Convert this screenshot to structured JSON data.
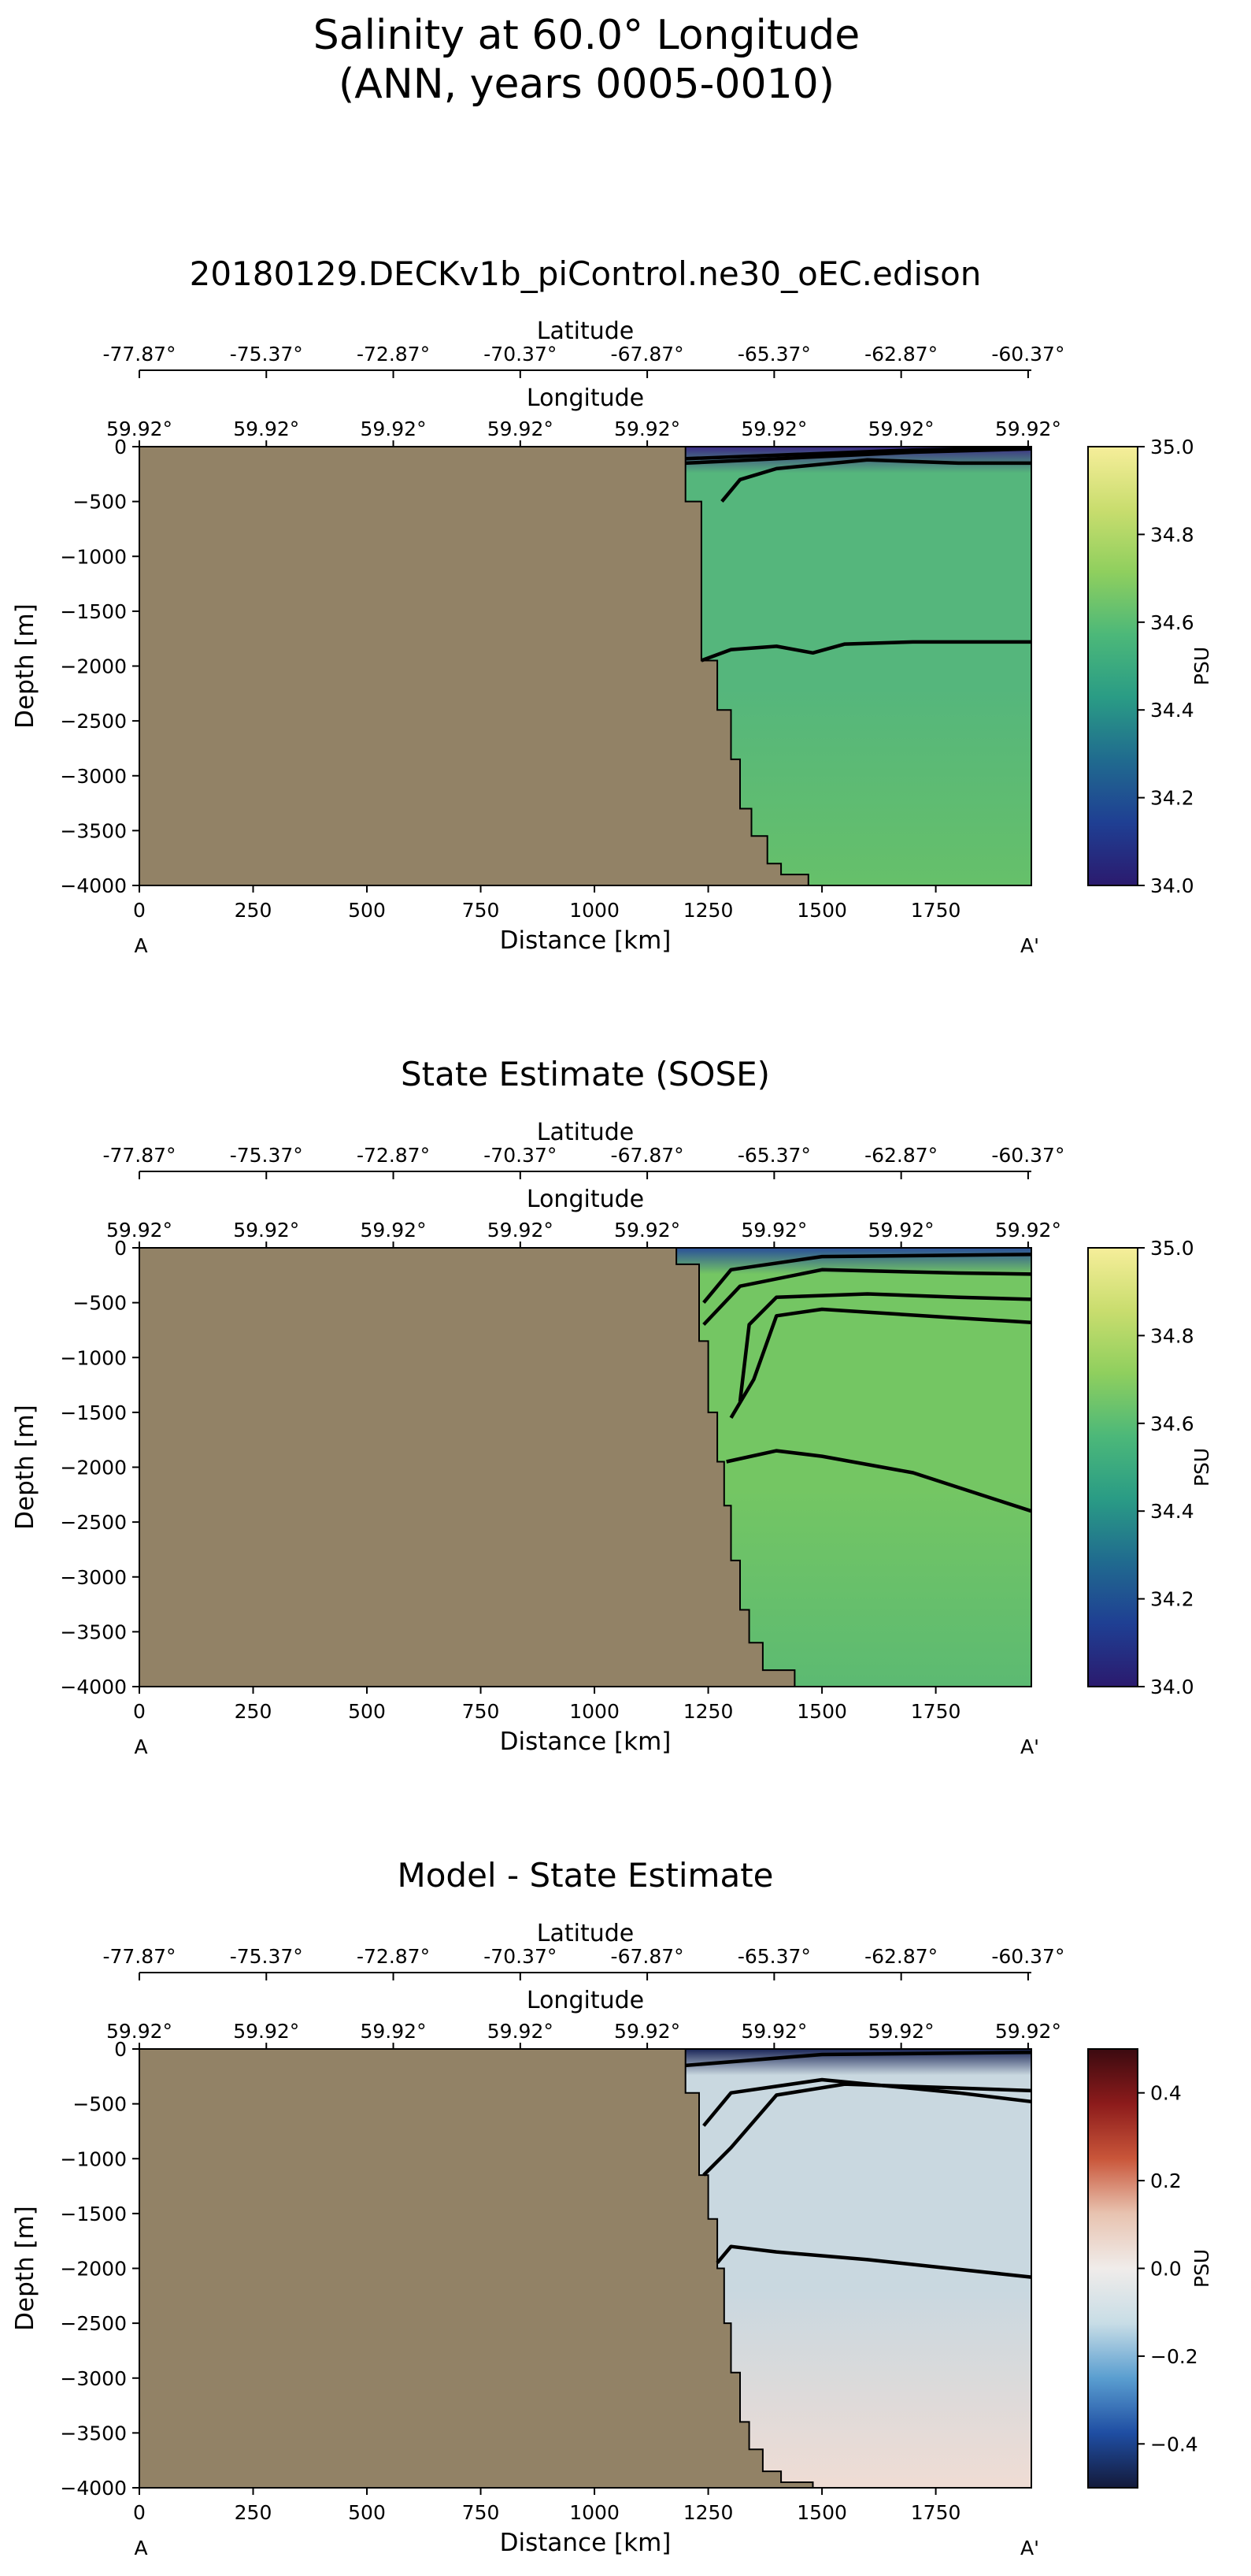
{
  "figure": {
    "title_line1": "Salinity at 60.0° Longitude",
    "title_line2": "(ANN, years 0005-0010)"
  },
  "chart_data": [
    {
      "type": "heatmap",
      "title": "20180129.DECKv1b_piControl.ne30_oEC.edison",
      "xlabel": "Distance [km]",
      "ylabel": "Depth [m]",
      "xlim": [
        0,
        1960
      ],
      "ylim": [
        -4000,
        0
      ],
      "xticks": [
        0,
        250,
        500,
        750,
        1000,
        1250,
        1500,
        1750
      ],
      "yticks": [
        0,
        -500,
        -1000,
        -1500,
        -2000,
        -2500,
        -3000,
        -3500,
        -4000
      ],
      "secondary_axes": {
        "latitude_label": "Latitude",
        "latitude_ticks": [
          "-77.87°",
          "-75.37°",
          "-72.87°",
          "-70.37°",
          "-67.87°",
          "-65.37°",
          "-62.87°",
          "-60.37°"
        ],
        "longitude_label": "Longitude",
        "longitude_ticks": [
          "59.92°",
          "59.92°",
          "59.92°",
          "59.92°",
          "59.92°",
          "59.92°",
          "59.92°",
          "59.92°"
        ]
      },
      "endpoint_labels": [
        "A",
        "A'"
      ],
      "colorbar": {
        "label": "PSU",
        "vmin": 34.0,
        "vmax": 35.0,
        "ticks": [
          "35.0",
          "34.8",
          "34.6",
          "34.4",
          "34.2",
          "34.0"
        ],
        "colors": [
          "#2b1a6e",
          "#1f3f93",
          "#206b8f",
          "#2a9c85",
          "#4cb879",
          "#8fcf5e",
          "#c9dd6e",
          "#f6ee9a"
        ]
      },
      "field_color_deep": "#66c06a",
      "field_color_mid": "#55b67c",
      "surface_color": "#3b2a85",
      "land_color": "#928266",
      "coastline": [
        [
          1200,
          0
        ],
        [
          1200,
          -500
        ],
        [
          1235,
          -500
        ],
        [
          1235,
          -1950
        ],
        [
          1270,
          -1950
        ],
        [
          1270,
          -2400
        ],
        [
          1300,
          -2400
        ],
        [
          1300,
          -2850
        ],
        [
          1320,
          -2850
        ],
        [
          1320,
          -3300
        ],
        [
          1345,
          -3300
        ],
        [
          1345,
          -3550
        ],
        [
          1380,
          -3550
        ],
        [
          1380,
          -3800
        ],
        [
          1410,
          -3800
        ],
        [
          1410,
          -3900
        ],
        [
          1470,
          -3900
        ],
        [
          1470,
          -4000
        ]
      ],
      "contours": [
        [
          [
            1200,
            -150
          ],
          [
            1700,
            -50
          ],
          [
            1960,
            -20
          ]
        ],
        [
          [
            1200,
            -110
          ],
          [
            1700,
            -30
          ],
          [
            1960,
            -10
          ]
        ],
        [
          [
            1280,
            -500
          ],
          [
            1320,
            -300
          ],
          [
            1400,
            -200
          ],
          [
            1600,
            -120
          ],
          [
            1800,
            -150
          ],
          [
            1960,
            -150
          ]
        ],
        [
          [
            1235,
            -1950
          ],
          [
            1300,
            -1850
          ],
          [
            1400,
            -1820
          ],
          [
            1480,
            -1880
          ],
          [
            1550,
            -1800
          ],
          [
            1700,
            -1780
          ],
          [
            1960,
            -1780
          ]
        ]
      ]
    },
    {
      "type": "heatmap",
      "title": "State Estimate (SOSE)",
      "xlabel": "Distance [km]",
      "ylabel": "Depth [m]",
      "xlim": [
        0,
        1960
      ],
      "ylim": [
        -4000,
        0
      ],
      "xticks": [
        0,
        250,
        500,
        750,
        1000,
        1250,
        1500,
        1750
      ],
      "yticks": [
        0,
        -500,
        -1000,
        -1500,
        -2000,
        -2500,
        -3000,
        -3500,
        -4000
      ],
      "secondary_axes": {
        "latitude_label": "Latitude",
        "latitude_ticks": [
          "-77.87°",
          "-75.37°",
          "-72.87°",
          "-70.37°",
          "-67.87°",
          "-65.37°",
          "-62.87°",
          "-60.37°"
        ],
        "longitude_label": "Longitude",
        "longitude_ticks": [
          "59.92°",
          "59.92°",
          "59.92°",
          "59.92°",
          "59.92°",
          "59.92°",
          "59.92°",
          "59.92°"
        ]
      },
      "endpoint_labels": [
        "A",
        "A'"
      ],
      "colorbar": {
        "label": "PSU",
        "vmin": 34.0,
        "vmax": 35.0,
        "ticks": [
          "35.0",
          "34.8",
          "34.6",
          "34.4",
          "34.2",
          "34.0"
        ],
        "colors": [
          "#2b1a6e",
          "#1f3f93",
          "#206b8f",
          "#2a9c85",
          "#4cb879",
          "#8fcf5e",
          "#c9dd6e",
          "#f6ee9a"
        ]
      },
      "field_color_deep": "#5cba72",
      "field_color_mid": "#74c663",
      "surface_color": "#2a4f9a",
      "land_color": "#928266",
      "coastline": [
        [
          1180,
          0
        ],
        [
          1180,
          -150
        ],
        [
          1230,
          -150
        ],
        [
          1230,
          -850
        ],
        [
          1250,
          -850
        ],
        [
          1250,
          -1500
        ],
        [
          1270,
          -1500
        ],
        [
          1270,
          -1950
        ],
        [
          1285,
          -1950
        ],
        [
          1285,
          -2350
        ],
        [
          1300,
          -2350
        ],
        [
          1300,
          -2850
        ],
        [
          1320,
          -2850
        ],
        [
          1320,
          -3300
        ],
        [
          1340,
          -3300
        ],
        [
          1340,
          -3600
        ],
        [
          1370,
          -3600
        ],
        [
          1370,
          -3850
        ],
        [
          1440,
          -3850
        ],
        [
          1440,
          -4000
        ]
      ],
      "contours": [
        [
          [
            1240,
            -500
          ],
          [
            1300,
            -200
          ],
          [
            1500,
            -80
          ],
          [
            1960,
            -60
          ]
        ],
        [
          [
            1240,
            -700
          ],
          [
            1320,
            -350
          ],
          [
            1500,
            -200
          ],
          [
            1800,
            -230
          ],
          [
            1960,
            -240
          ]
        ],
        [
          [
            1320,
            -1400
          ],
          [
            1340,
            -700
          ],
          [
            1400,
            -450
          ],
          [
            1600,
            -420
          ],
          [
            1800,
            -450
          ],
          [
            1960,
            -470
          ]
        ],
        [
          [
            1300,
            -1550
          ],
          [
            1350,
            -1200
          ],
          [
            1400,
            -620
          ],
          [
            1500,
            -560
          ],
          [
            1800,
            -640
          ],
          [
            1960,
            -680
          ]
        ],
        [
          [
            1290,
            -1950
          ],
          [
            1400,
            -1850
          ],
          [
            1500,
            -1900
          ],
          [
            1700,
            -2050
          ],
          [
            1960,
            -2400
          ]
        ]
      ]
    },
    {
      "type": "heatmap",
      "title": "Model - State Estimate",
      "xlabel": "Distance [km]",
      "ylabel": "Depth [m]",
      "xlim": [
        0,
        1960
      ],
      "ylim": [
        -4000,
        0
      ],
      "xticks": [
        0,
        250,
        500,
        750,
        1000,
        1250,
        1500,
        1750
      ],
      "yticks": [
        0,
        -500,
        -1000,
        -1500,
        -2000,
        -2500,
        -3000,
        -3500,
        -4000
      ],
      "secondary_axes": {
        "latitude_label": "Latitude",
        "latitude_ticks": [
          "-77.87°",
          "-75.37°",
          "-72.87°",
          "-70.37°",
          "-67.87°",
          "-65.37°",
          "-62.87°",
          "-60.37°"
        ],
        "longitude_label": "Longitude",
        "longitude_ticks": [
          "59.92°",
          "59.92°",
          "59.92°",
          "59.92°",
          "59.92°",
          "59.92°",
          "59.92°",
          "59.92°"
        ]
      },
      "endpoint_labels": [
        "A",
        "A'"
      ],
      "colorbar": {
        "label": "PSU",
        "vmin": -0.5,
        "vmax": 0.5,
        "ticks": [
          "0.4",
          "0.2",
          "0.0",
          "−0.2",
          "−0.4"
        ],
        "tick_values": [
          0.4,
          0.2,
          0.0,
          -0.2,
          -0.4
        ],
        "colors": [
          "#141a3a",
          "#1f4ea3",
          "#5a9ed0",
          "#c8dde6",
          "#f0ecea",
          "#e8c3b0",
          "#c9563a",
          "#8c1b1b",
          "#3b0a10"
        ]
      },
      "field_color_deep": "#efdcd4",
      "field_color_mid": "#c9d8e0",
      "surface_color": "#1a2557",
      "land_color": "#928266",
      "coastline": [
        [
          1200,
          0
        ],
        [
          1200,
          -400
        ],
        [
          1230,
          -400
        ],
        [
          1230,
          -1150
        ],
        [
          1250,
          -1150
        ],
        [
          1250,
          -1550
        ],
        [
          1270,
          -1550
        ],
        [
          1270,
          -2000
        ],
        [
          1285,
          -2000
        ],
        [
          1285,
          -2500
        ],
        [
          1300,
          -2500
        ],
        [
          1300,
          -2950
        ],
        [
          1320,
          -2950
        ],
        [
          1320,
          -3400
        ],
        [
          1340,
          -3400
        ],
        [
          1340,
          -3650
        ],
        [
          1370,
          -3650
        ],
        [
          1370,
          -3850
        ],
        [
          1410,
          -3850
        ],
        [
          1410,
          -3950
        ],
        [
          1480,
          -3950
        ],
        [
          1480,
          -4000
        ]
      ],
      "contours": [
        [
          [
            1200,
            -150
          ],
          [
            1500,
            -50
          ],
          [
            1960,
            -30
          ]
        ],
        [
          [
            1240,
            -700
          ],
          [
            1300,
            -400
          ],
          [
            1500,
            -280
          ],
          [
            1800,
            -400
          ],
          [
            1960,
            -480
          ]
        ],
        [
          [
            1240,
            -1150
          ],
          [
            1300,
            -900
          ],
          [
            1400,
            -420
          ],
          [
            1550,
            -320
          ],
          [
            1960,
            -380
          ]
        ],
        [
          [
            1270,
            -1950
          ],
          [
            1300,
            -1800
          ],
          [
            1400,
            -1850
          ],
          [
            1600,
            -1920
          ],
          [
            1960,
            -2080
          ]
        ]
      ]
    }
  ]
}
